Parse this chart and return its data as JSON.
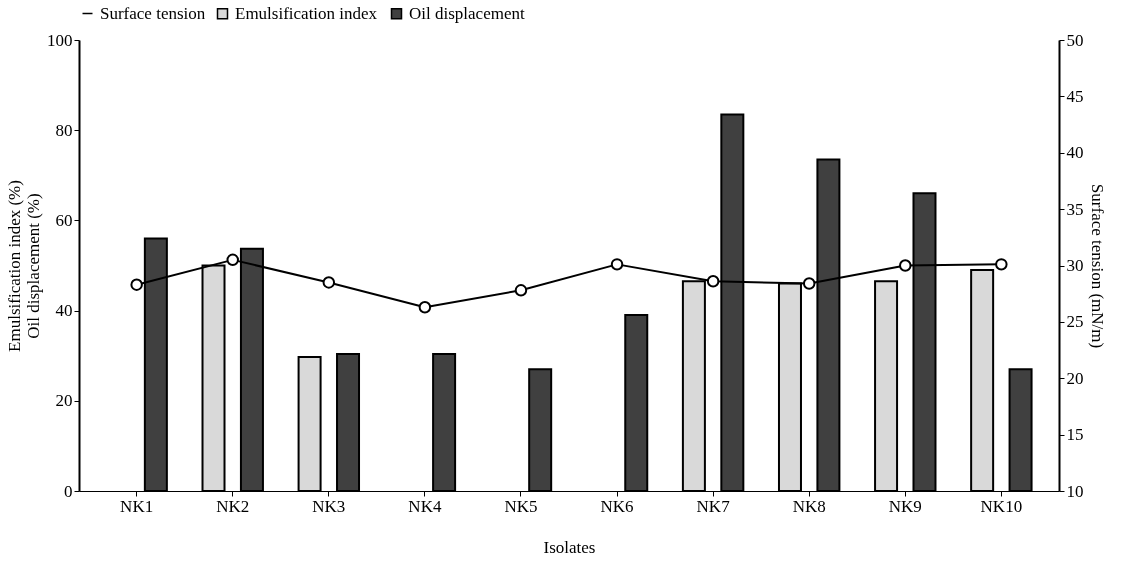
{
  "chart_data": {
    "type": "bar",
    "xlabel": "Isolates",
    "ylabel": "Emulsification index (%)\nOil displacement (%)",
    "y2label": "Surface tension (mN/m)",
    "categories": [
      "NK1",
      "NK2",
      "NK3",
      "NK4",
      "NK5",
      "NK6",
      "NK7",
      "NK8",
      "NK9",
      "NK10"
    ],
    "series": [
      {
        "name": "Emulsification index",
        "color": "#d9d9d9",
        "values": [
          null,
          50,
          29.7,
          null,
          null,
          null,
          46.5,
          46,
          46.5,
          49
        ]
      },
      {
        "name": "Oil displacement",
        "color": "#404040",
        "values": [
          56,
          53.7,
          30.4,
          30.4,
          27,
          39,
          83.5,
          73.5,
          66,
          27
        ]
      },
      {
        "name": "Surface tension",
        "type": "line",
        "axis": "y2",
        "color": "#000000",
        "marker": "circle",
        "values": [
          28.3,
          30.5,
          28.5,
          26.3,
          27.8,
          30.1,
          28.6,
          28.4,
          30.0,
          30.1
        ]
      }
    ],
    "ylim": [
      0,
      100
    ],
    "yticks": [
      0,
      20,
      40,
      60,
      80,
      100
    ],
    "y2lim": [
      10,
      50
    ],
    "y2ticks": [
      10,
      15,
      20,
      25,
      30,
      35,
      40,
      45,
      50
    ],
    "grid": false,
    "legend": "top"
  }
}
